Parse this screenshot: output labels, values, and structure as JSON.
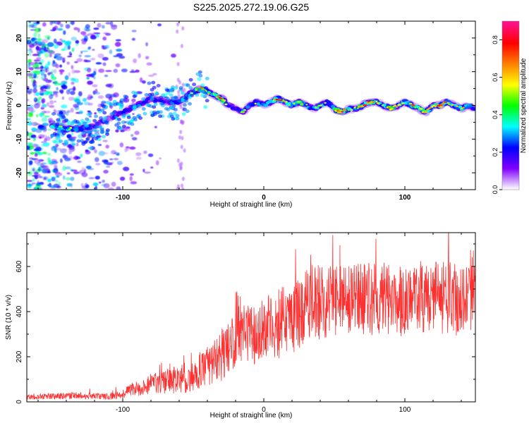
{
  "chart_data": [
    {
      "type": "heatmap",
      "title": "S225.2025.272.19.06.G25",
      "xlabel": "Height of straight line (km)",
      "ylabel": "Frequency (Hz)",
      "xlim": [
        -168,
        150
      ],
      "ylim": [
        -25,
        25
      ],
      "x_ticks": [
        -100,
        0,
        100
      ],
      "y_ticks": [
        -20,
        -10,
        0,
        10,
        20
      ],
      "colorbar": {
        "label": "Normalized spectral amplitude",
        "range": [
          0.0,
          0.9
        ],
        "ticks": [
          0.0,
          0.2,
          0.4,
          0.6,
          0.8
        ],
        "colors": [
          "#ffffff",
          "#8000ff",
          "#0000ff",
          "#00ffff",
          "#00ff00",
          "#ffff00",
          "#ff8000",
          "#ff0000",
          "#ff1090"
        ]
      },
      "ridge": {
        "x": [
          -150,
          -140,
          -130,
          -120,
          -110,
          -100,
          -90,
          -80,
          -70,
          -60,
          -50,
          -45,
          -40,
          -35,
          -30,
          -25,
          -20,
          -15,
          -10,
          -5,
          0,
          5,
          10,
          15,
          20,
          25,
          30,
          35,
          40,
          45,
          50,
          55,
          60,
          65,
          70,
          75,
          80,
          85,
          90,
          95,
          100,
          105,
          110,
          115,
          120,
          125,
          130,
          135,
          140,
          145,
          150
        ],
        "y": [
          -6,
          -7,
          -7,
          -6,
          -4,
          -2,
          0,
          2,
          1,
          1,
          4,
          5,
          4,
          3,
          2,
          0,
          -1,
          -2,
          0,
          1,
          0,
          1,
          2,
          1,
          0,
          1,
          0,
          -1,
          0,
          1,
          -1,
          -2,
          -1,
          -1,
          0,
          1,
          1,
          0,
          -1,
          0,
          1,
          0,
          -1,
          -2,
          0,
          0,
          1,
          0,
          -1,
          0,
          -1
        ],
        "amplitude": [
          0.5,
          0.55,
          0.45,
          0.3,
          0.25,
          0.35,
          0.4,
          0.35,
          0.3,
          0.45,
          0.5,
          0.8,
          0.6,
          0.5,
          0.85,
          0.3,
          0.35,
          0.5,
          0.4,
          0.55,
          0.45,
          0.5,
          0.85,
          0.6,
          0.45,
          0.65,
          0.5,
          0.45,
          0.55,
          0.45,
          0.6,
          0.85,
          0.55,
          0.5,
          0.7,
          0.85,
          0.6,
          0.5,
          0.75,
          0.55,
          0.5,
          0.7,
          0.55,
          0.75,
          0.5,
          0.85,
          0.6,
          0.55,
          0.65,
          0.45,
          0.4
        ]
      },
      "noise": {
        "x_range": [
          -168,
          -60
        ],
        "freq_range": [
          -25,
          25
        ],
        "level": [
          0.05,
          0.35
        ]
      }
    },
    {
      "type": "line",
      "xlabel": "Height of straight line (km)",
      "ylabel": "SNR (10 * v/v)",
      "xlim": [
        -168,
        150
      ],
      "ylim": [
        0,
        750
      ],
      "x_ticks": [
        -100,
        0,
        100
      ],
      "y_ticks": [
        0,
        200,
        400,
        600
      ],
      "line_color": "#ff3030",
      "series": [
        {
          "name": "SNR",
          "x": [
            -168,
            -150,
            -130,
            -110,
            -100,
            -90,
            -80,
            -70,
            -60,
            -50,
            -40,
            -30,
            -25,
            -20,
            -15,
            -10,
            0,
            10,
            20,
            30,
            40,
            50,
            60,
            70,
            80,
            90,
            100,
            110,
            120,
            130,
            140,
            150
          ],
          "y": [
            20,
            25,
            28,
            25,
            40,
            60,
            80,
            90,
            100,
            120,
            160,
            200,
            250,
            280,
            320,
            300,
            330,
            350,
            380,
            420,
            440,
            450,
            450,
            455,
            455,
            450,
            445,
            450,
            455,
            460,
            450,
            460
          ],
          "spread": [
            12,
            14,
            15,
            15,
            25,
            35,
            45,
            55,
            65,
            75,
            90,
            110,
            120,
            130,
            140,
            140,
            150,
            160,
            170,
            170,
            170,
            170,
            170,
            165,
            165,
            165,
            160,
            160,
            165,
            165,
            160,
            160
          ]
        }
      ]
    }
  ]
}
